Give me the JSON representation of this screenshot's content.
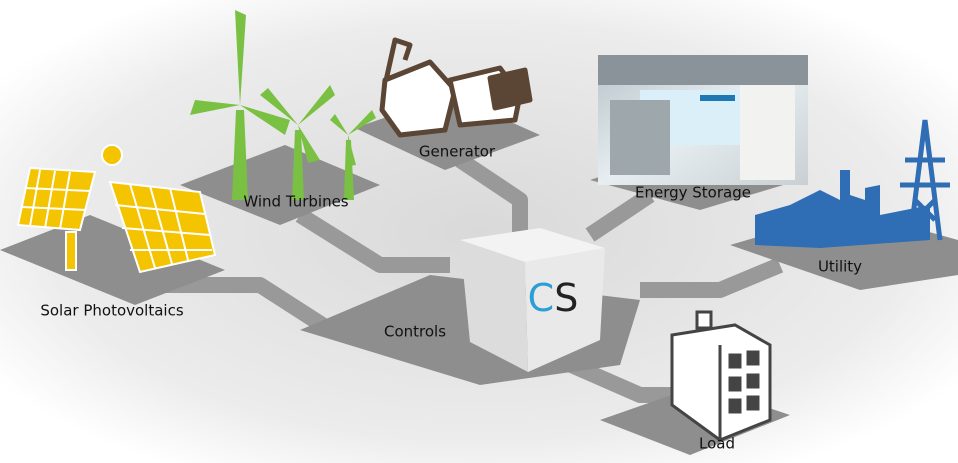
{
  "nodes": [
    {
      "label": "Solar Photovoltaics"
    },
    {
      "label": "Wind Turbines"
    },
    {
      "label": "Generator"
    },
    {
      "label": "Energy Storage"
    },
    {
      "label": "Utility"
    },
    {
      "label": "Controls"
    },
    {
      "label": "Load"
    }
  ],
  "logo": [
    "C",
    "S"
  ]
}
